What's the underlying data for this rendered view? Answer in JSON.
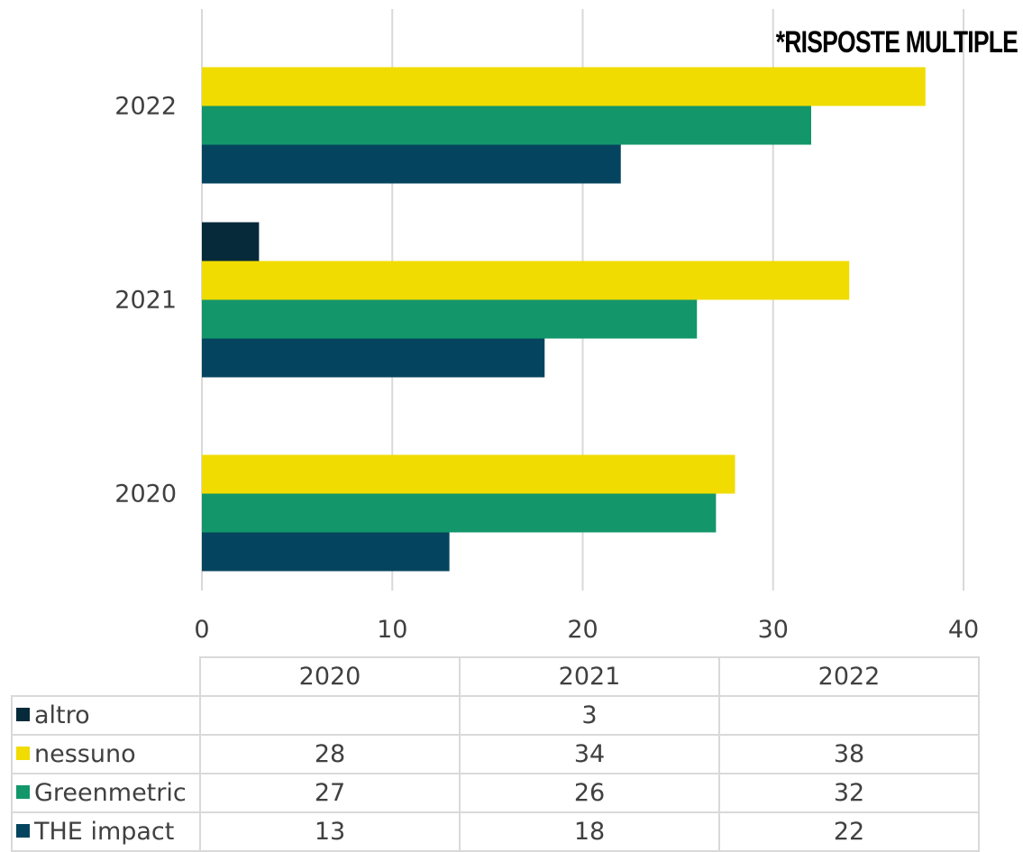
{
  "note": "*RISPOSTE MULTIPLE",
  "chart_data": {
    "type": "bar",
    "orientation": "horizontal",
    "categories": [
      "2020",
      "2021",
      "2022"
    ],
    "series": [
      {
        "name": "altro",
        "values": [
          null,
          3,
          null
        ],
        "color": "#062a3a"
      },
      {
        "name": "nessuno",
        "values": [
          28,
          34,
          38
        ],
        "color": "#f0dc00"
      },
      {
        "name": "Greenmetric",
        "values": [
          27,
          26,
          32
        ],
        "color": "#13976a"
      },
      {
        "name": "THE impact",
        "values": [
          13,
          18,
          22
        ],
        "color": "#05445e"
      }
    ],
    "xlim": [
      0,
      40
    ],
    "xticks": [
      0,
      10,
      20,
      30,
      40
    ],
    "grid": true,
    "data_table": true
  },
  "table": {
    "years": [
      "2020",
      "2021",
      "2022"
    ],
    "rows": [
      {
        "label": "altro",
        "values": [
          "",
          "3",
          ""
        ]
      },
      {
        "label": "nessuno",
        "values": [
          "28",
          "34",
          "38"
        ]
      },
      {
        "label": "Greenmetric",
        "values": [
          "27",
          "26",
          "32"
        ]
      },
      {
        "label": "THE impact",
        "values": [
          "13",
          "18",
          "22"
        ]
      }
    ]
  }
}
